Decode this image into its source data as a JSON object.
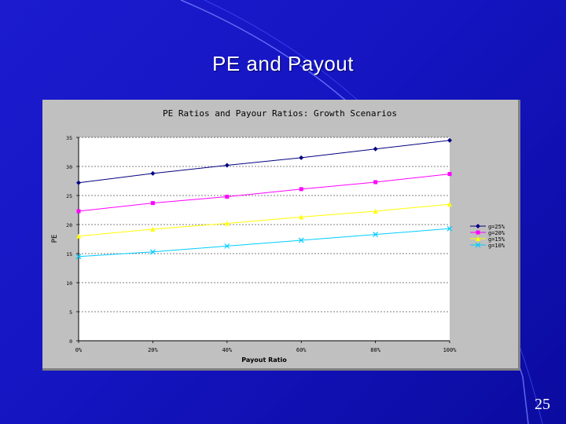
{
  "slide": {
    "title": "PE and Payout",
    "page_number": "25",
    "background_color": "#1515c2"
  },
  "chart_data": {
    "type": "line",
    "title": "PE Ratios and Payour Ratios: Growth Scenarios",
    "xlabel": "Payout Ratio",
    "ylabel": "PE",
    "x": [
      0,
      20,
      40,
      60,
      80,
      100
    ],
    "x_tick_labels": [
      "0%",
      "20%",
      "40%",
      "60%",
      "80%",
      "100%"
    ],
    "y_ticks": [
      0,
      5,
      10,
      15,
      20,
      25,
      30,
      35
    ],
    "y_tick_labels": [
      "0",
      "5",
      "10",
      "15",
      "20",
      "25",
      "30",
      "35"
    ],
    "ylim": [
      0,
      35
    ],
    "xlim": [
      0,
      100
    ],
    "grid": "horizontal dashed",
    "legend_position": "right",
    "plot_background": "#ffffff",
    "series": [
      {
        "name": "g=25%",
        "color": "#000080",
        "marker": "diamond",
        "values": [
          27.2,
          28.8,
          30.2,
          31.5,
          33.0,
          34.5
        ]
      },
      {
        "name": "g=20%",
        "color": "#ff00ff",
        "marker": "square",
        "values": [
          22.3,
          23.7,
          24.8,
          26.1,
          27.3,
          28.7
        ]
      },
      {
        "name": "g=15%",
        "color": "#ffff00",
        "marker": "triangle",
        "values": [
          18.0,
          19.2,
          20.2,
          21.3,
          22.3,
          23.5
        ]
      },
      {
        "name": "g=10%",
        "color": "#00ccff",
        "marker": "x",
        "values": [
          14.5,
          15.3,
          16.3,
          17.3,
          18.3,
          19.3
        ]
      }
    ]
  }
}
